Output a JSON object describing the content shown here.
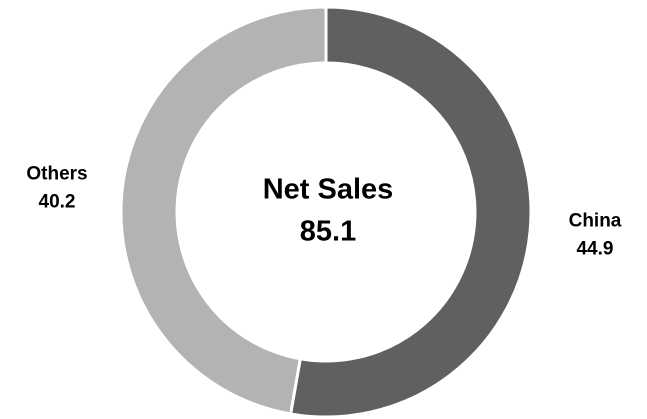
{
  "chart_data": {
    "type": "donut",
    "center_title": "Net Sales",
    "center_value": 85.1,
    "categories": [
      "China",
      "Others"
    ],
    "values": [
      44.9,
      40.2
    ],
    "colors": [
      "#606060",
      "#b3b3b3"
    ]
  }
}
